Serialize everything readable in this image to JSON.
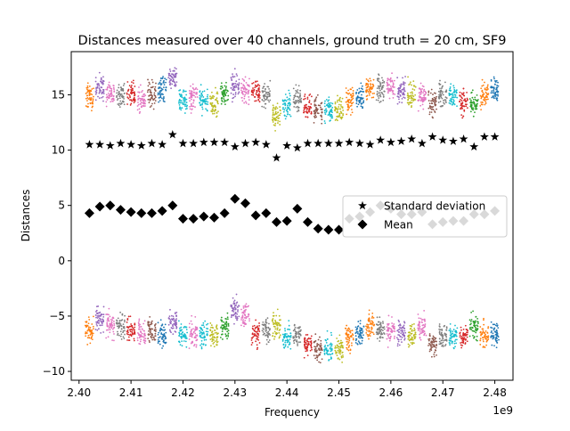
{
  "chart_data": {
    "type": "scatter",
    "title": "Distances measured over 40 channels, ground truth = 20 cm, SF9",
    "xlabel": "Frequency",
    "ylabel": "Distances",
    "x_offset_label": "1e9",
    "xlim": [
      2.3985,
      2.4835
    ],
    "ylim": [
      -10.8,
      18.9
    ],
    "x_ticks": [
      2.4,
      2.41,
      2.42,
      2.43,
      2.44,
      2.45,
      2.46,
      2.47,
      2.48
    ],
    "x_tick_labels": [
      "2.40",
      "2.41",
      "2.42",
      "2.43",
      "2.44",
      "2.45",
      "2.46",
      "2.47",
      "2.48"
    ],
    "y_ticks": [
      -10,
      -5,
      0,
      5,
      10,
      15
    ],
    "y_tick_labels": [
      "−10",
      "−5",
      "0",
      "5",
      "10",
      "15"
    ],
    "legend_position": "center-right",
    "legend": [
      {
        "label": "Standard deviation",
        "marker": "star",
        "color": "#000000"
      },
      {
        "label": "Mean",
        "marker": "diamond",
        "color": "#000000"
      }
    ],
    "channel_freqs_ghz": [
      2.402,
      2.404,
      2.406,
      2.408,
      2.41,
      2.412,
      2.414,
      2.416,
      2.418,
      2.42,
      2.422,
      2.424,
      2.426,
      2.428,
      2.43,
      2.432,
      2.434,
      2.436,
      2.438,
      2.44,
      2.442,
      2.444,
      2.446,
      2.448,
      2.45,
      2.452,
      2.454,
      2.456,
      2.458,
      2.46,
      2.462,
      2.464,
      2.466,
      2.468,
      2.47,
      2.472,
      2.474,
      2.476,
      2.478,
      2.48
    ],
    "upper_cluster_centers": [
      14.8,
      15.7,
      15.2,
      15.0,
      15.0,
      14.5,
      15.0,
      15.5,
      16.5,
      14.5,
      14.8,
      14.5,
      14.3,
      15.0,
      15.8,
      15.5,
      15.3,
      15.0,
      13.2,
      14.0,
      14.7,
      13.8,
      13.6,
      13.6,
      13.7,
      14.5,
      14.8,
      15.5,
      15.5,
      15.8,
      15.4,
      15.0,
      14.9,
      14.3,
      15.0,
      14.8,
      14.3,
      14.3,
      15.0,
      15.5
    ],
    "lower_cluster_centers": [
      -6.3,
      -5.3,
      -5.8,
      -5.9,
      -6.4,
      -6.5,
      -6.3,
      -6.6,
      -5.5,
      -6.7,
      -6.6,
      -6.6,
      -6.7,
      -6.1,
      -4.6,
      -5.0,
      -6.6,
      -6.3,
      -5.9,
      -7.0,
      -6.6,
      -7.5,
      -8.0,
      -8.0,
      -7.9,
      -6.9,
      -6.6,
      -5.8,
      -6.2,
      -6.3,
      -6.4,
      -6.7,
      -6.2,
      -7.6,
      -6.8,
      -6.8,
      -6.9,
      -5.9,
      -6.8,
      -6.5
    ],
    "series": [
      {
        "name": "Standard deviation",
        "marker": "star",
        "color": "#000000",
        "x": [
          2.402,
          2.404,
          2.406,
          2.408,
          2.41,
          2.412,
          2.414,
          2.416,
          2.418,
          2.42,
          2.422,
          2.424,
          2.426,
          2.428,
          2.43,
          2.432,
          2.434,
          2.436,
          2.438,
          2.44,
          2.442,
          2.444,
          2.446,
          2.448,
          2.45,
          2.452,
          2.454,
          2.456,
          2.458,
          2.46,
          2.462,
          2.464,
          2.466,
          2.468,
          2.47,
          2.472,
          2.474,
          2.476,
          2.478,
          2.48
        ],
        "y": [
          10.5,
          10.5,
          10.4,
          10.6,
          10.5,
          10.4,
          10.6,
          10.5,
          11.4,
          10.6,
          10.6,
          10.7,
          10.7,
          10.7,
          10.3,
          10.6,
          10.7,
          10.5,
          9.3,
          10.4,
          10.2,
          10.6,
          10.6,
          10.6,
          10.6,
          10.7,
          10.6,
          10.5,
          10.9,
          10.7,
          10.8,
          11.0,
          10.6,
          11.2,
          10.9,
          10.8,
          11.0,
          10.3,
          11.2,
          11.2
        ]
      },
      {
        "name": "Mean",
        "marker": "diamond",
        "color": "#000000",
        "x": [
          2.402,
          2.404,
          2.406,
          2.408,
          2.41,
          2.412,
          2.414,
          2.416,
          2.418,
          2.42,
          2.422,
          2.424,
          2.426,
          2.428,
          2.43,
          2.432,
          2.434,
          2.436,
          2.438,
          2.44,
          2.442,
          2.444,
          2.446,
          2.448,
          2.45,
          2.452,
          2.454,
          2.456,
          2.458,
          2.46,
          2.462,
          2.464,
          2.466,
          2.468,
          2.47,
          2.472,
          2.474,
          2.476,
          2.478,
          2.48
        ],
        "y": [
          4.3,
          4.9,
          5.0,
          4.6,
          4.4,
          4.3,
          4.3,
          4.5,
          5.0,
          3.8,
          3.8,
          4.0,
          3.9,
          4.3,
          5.6,
          5.2,
          4.1,
          4.3,
          3.5,
          3.6,
          4.7,
          3.5,
          2.9,
          2.8,
          2.8,
          3.8,
          4.0,
          4.4,
          5.0,
          4.7,
          4.2,
          4.2,
          4.4,
          3.3,
          3.5,
          3.6,
          3.6,
          4.2,
          4.2,
          4.5
        ]
      }
    ],
    "colors": [
      "#1f77b4",
      "#ff7f0e",
      "#2ca02c",
      "#d62728",
      "#9467bd",
      "#8c564b",
      "#e377c2",
      "#7f7f7f",
      "#bcbd22",
      "#17becf"
    ],
    "channel_color_order": [
      1,
      4,
      6,
      7,
      3,
      6,
      5,
      0,
      4,
      9,
      6,
      9,
      8,
      2,
      4,
      6,
      3,
      7,
      8,
      9,
      7,
      3,
      5,
      9,
      8,
      1,
      0,
      1,
      7,
      6,
      4,
      8,
      6,
      5,
      7,
      9,
      3,
      2,
      1,
      0
    ]
  }
}
